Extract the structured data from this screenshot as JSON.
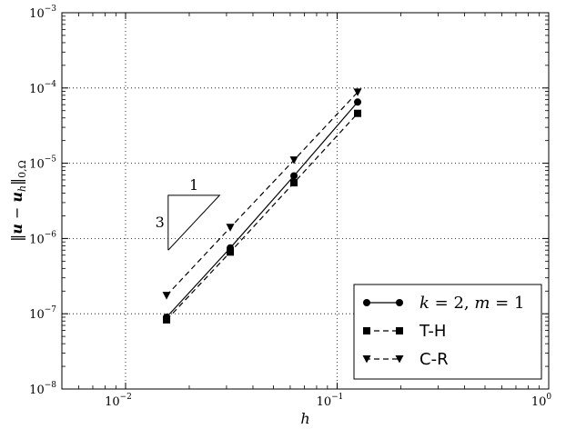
{
  "chart_data": {
    "type": "line",
    "xscale": "log",
    "yscale": "log",
    "xlim": [
      0.005,
      1
    ],
    "ylim": [
      1e-08,
      0.001
    ],
    "grid": true,
    "xlabel": "h",
    "ylabel": "||u − u_h||_{0,Ω}",
    "x_ticks": [
      {
        "value": 0.01,
        "base": "10",
        "exp": "−2"
      },
      {
        "value": 0.1,
        "base": "10",
        "exp": "−1"
      },
      {
        "value": 1,
        "base": "10",
        "exp": "0"
      }
    ],
    "y_ticks": [
      {
        "value": 1e-08,
        "base": "10",
        "exp": "−8"
      },
      {
        "value": 1e-07,
        "base": "10",
        "exp": "−7"
      },
      {
        "value": 1e-06,
        "base": "10",
        "exp": "−6"
      },
      {
        "value": 1e-05,
        "base": "10",
        "exp": "−5"
      },
      {
        "value": 0.0001,
        "base": "10",
        "exp": "−4"
      },
      {
        "value": 0.001,
        "base": "10",
        "exp": "−3"
      }
    ],
    "x": [
      0.015625,
      0.03125,
      0.0625,
      0.125
    ],
    "series": [
      {
        "name": "k = 2, m = 1",
        "linestyle": "solid",
        "marker": "circle",
        "values": [
          9e-08,
          7.5e-07,
          6.8e-06,
          6.5e-05
        ]
      },
      {
        "name": "T-H",
        "linestyle": "dashed",
        "marker": "square",
        "values": [
          8.3e-08,
          6.6e-07,
          5.5e-06,
          4.6e-05
        ]
      },
      {
        "name": "C-R",
        "linestyle": "dashed",
        "marker": "triangle-down",
        "values": [
          1.75e-07,
          1.4e-06,
          1.1e-05,
          8.8e-05
        ]
      }
    ],
    "slope_triangle": {
      "horizontal_label": "1",
      "vertical_label": "3",
      "corner": {
        "x": 0.0159,
        "y": 7e-07
      },
      "width_factor": 1.75
    },
    "legend_position": "bottom-right"
  }
}
